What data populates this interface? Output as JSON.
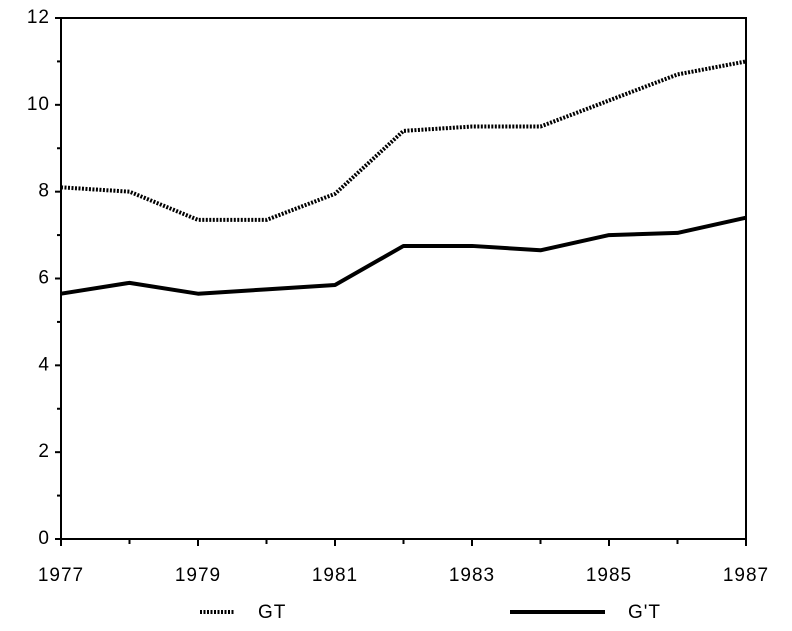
{
  "chart_data": {
    "type": "line",
    "x": [
      1977,
      1978,
      1979,
      1980,
      1981,
      1982,
      1983,
      1984,
      1985,
      1986,
      1987
    ],
    "series": [
      {
        "name": "GT",
        "color": "#000000",
        "dash": "dotted",
        "values": [
          8.1,
          8.0,
          7.35,
          7.35,
          7.95,
          9.4,
          9.5,
          9.5,
          10.1,
          10.7,
          11.0
        ]
      },
      {
        "name": "G'T",
        "color": "#000000",
        "dash": "solid",
        "values": [
          5.65,
          5.9,
          5.65,
          5.75,
          5.85,
          6.75,
          6.75,
          6.65,
          7.0,
          7.05,
          7.4
        ]
      }
    ],
    "xlim": [
      1977,
      1987
    ],
    "xticks": [
      1977,
      1979,
      1981,
      1983,
      1985,
      1987
    ],
    "ylim": [
      0,
      12
    ],
    "yticks": [
      0,
      2,
      4,
      6,
      8,
      10,
      12
    ],
    "legend": "bottom"
  }
}
